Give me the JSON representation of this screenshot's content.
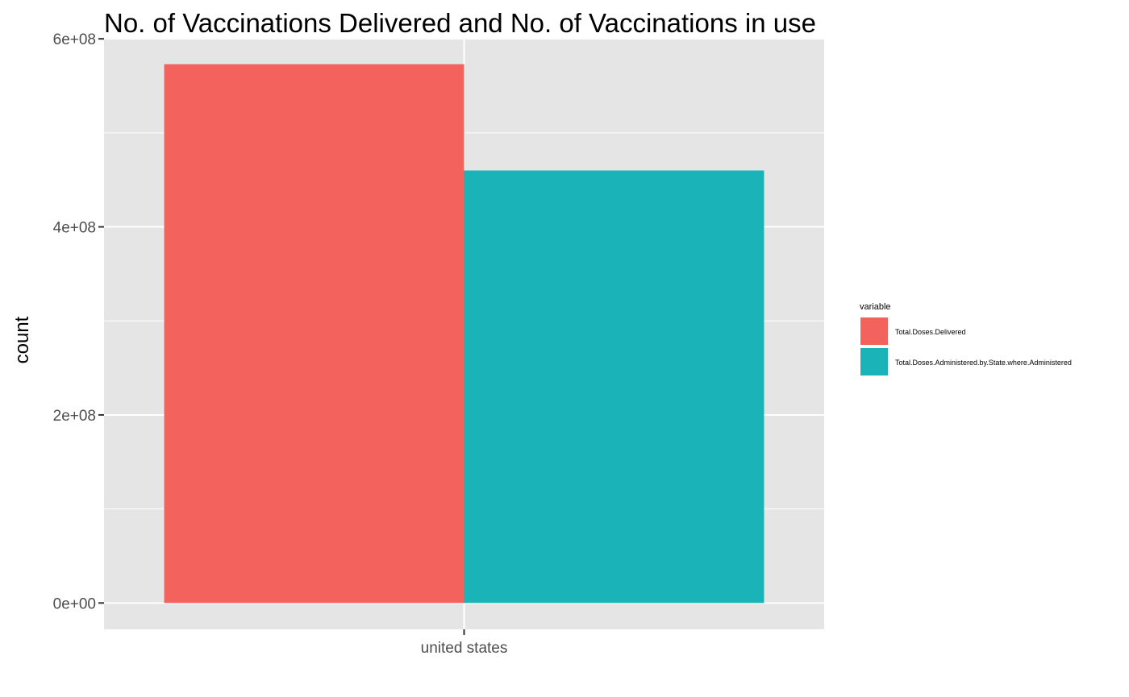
{
  "chart_data": {
    "type": "bar",
    "title": "No. of Vaccinations Delivered and No. of Vaccinations in use",
    "xlabel": "",
    "ylabel": "count",
    "categories": [
      "united states"
    ],
    "series": [
      {
        "name": "Total.Doses.Delivered",
        "values": [
          573000000
        ],
        "color": "#F3625D"
      },
      {
        "name": "Total.Doses.Administered.by.State.where.Administered",
        "values": [
          460000000
        ],
        "color": "#19B3B8"
      }
    ],
    "ylim": [
      -28000000,
      601000000
    ],
    "y_ticks": [
      0,
      200000000,
      400000000,
      600000000
    ],
    "y_tick_labels": [
      "0e+00",
      "2e+08",
      "4e+08",
      "6e+08"
    ],
    "grid": true,
    "panel_background": "#E5E5E5",
    "grid_color": "#FFFFFF",
    "legend": {
      "title": "variable",
      "position": "right"
    }
  }
}
